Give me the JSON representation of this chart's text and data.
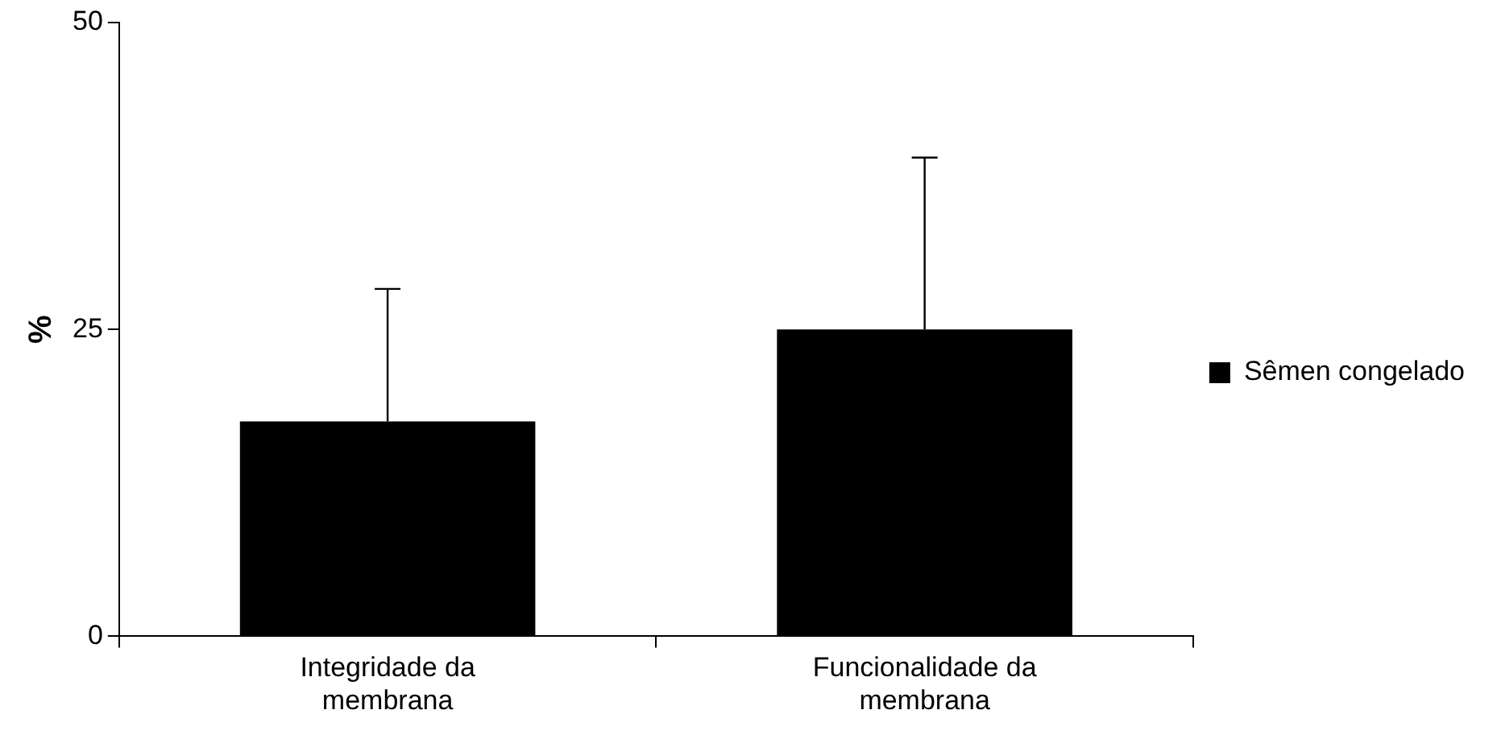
{
  "chart_data": {
    "type": "bar",
    "ylabel": "%",
    "categories": [
      "Integridade da membrana",
      "Funcionalidade da membrana"
    ],
    "series": [
      {
        "name": "Sêmen congelado",
        "color": "#000000",
        "values": [
          17.5,
          25
        ],
        "errors": [
          [
            17.5,
            28.3
          ],
          [
            25,
            39
          ]
        ]
      }
    ],
    "ylim": [
      0,
      50
    ],
    "yticks": [
      0,
      25,
      50
    ],
    "grid": false,
    "legend": "right"
  }
}
